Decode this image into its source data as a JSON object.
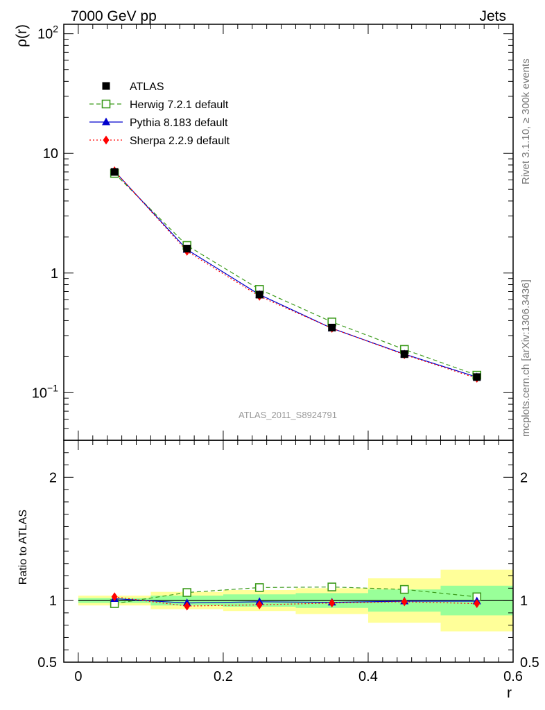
{
  "header": {
    "left_title": "7000 GeV pp",
    "right_title": "Jets",
    "side_label_1": "Rivet 3.1.10, ≥ 300k events",
    "side_label_2": "mcplots.cern.ch [arXiv:1306.3436]",
    "analysis_label": "ATLAS_2011_S8924791"
  },
  "chart_data": [
    {
      "type": "line",
      "title": "",
      "xlabel": "r",
      "ylabel": "ρ(r)",
      "yscale": "log",
      "xlim": [
        -0.02,
        0.6
      ],
      "ylim": [
        0.04,
        120
      ],
      "y_ticks": [
        {
          "value": 0.1,
          "base": "10",
          "exp": "−1"
        },
        {
          "value": 1,
          "label": "1"
        },
        {
          "value": 10,
          "label": "10"
        },
        {
          "value": 100,
          "base": "10",
          "exp": "2"
        }
      ],
      "x": [
        0.05,
        0.15,
        0.25,
        0.35,
        0.45,
        0.55
      ],
      "legend_position": "top-left",
      "series": [
        {
          "name": "ATLAS",
          "style": "data",
          "color": "#000000",
          "values": [
            7.0,
            1.6,
            0.66,
            0.35,
            0.21,
            0.135
          ]
        },
        {
          "name": "Herwig 7.2.1 default",
          "style": "dashed",
          "marker": "open-square",
          "color": "#3a9a1a",
          "values": [
            6.8,
            1.7,
            0.73,
            0.39,
            0.23,
            0.14
          ]
        },
        {
          "name": "Pythia 8.183 default",
          "style": "solid",
          "marker": "triangle",
          "color": "#0000cc",
          "values": [
            7.1,
            1.57,
            0.66,
            0.345,
            0.21,
            0.135
          ]
        },
        {
          "name": "Sherpa 2.2.9 default",
          "style": "dotted",
          "marker": "diamond",
          "color": "#ff0000",
          "values": [
            7.15,
            1.52,
            0.64,
            0.345,
            0.208,
            0.132
          ]
        }
      ]
    },
    {
      "type": "line",
      "title": "",
      "xlabel": "r",
      "ylabel": "Ratio to ATLAS",
      "xlim": [
        -0.02,
        0.6
      ],
      "ylim": [
        0.5,
        2.3
      ],
      "y_ticks": [
        0.5,
        1,
        2
      ],
      "x_ticks": [
        0,
        0.2,
        0.4,
        0.6
      ],
      "bins": [
        [
          0.0,
          0.1
        ],
        [
          0.1,
          0.2
        ],
        [
          0.2,
          0.3
        ],
        [
          0.3,
          0.4
        ],
        [
          0.4,
          0.5
        ],
        [
          0.5,
          0.6
        ]
      ],
      "band_stat": [
        [
          0.98,
          1.02
        ],
        [
          0.96,
          1.04
        ],
        [
          0.95,
          1.05
        ],
        [
          0.94,
          1.06
        ],
        [
          0.91,
          1.09
        ],
        [
          0.88,
          1.12
        ]
      ],
      "band_total": [
        [
          0.96,
          1.04
        ],
        [
          0.93,
          1.07
        ],
        [
          0.915,
          1.085
        ],
        [
          0.89,
          1.1
        ],
        [
          0.82,
          1.18
        ],
        [
          0.75,
          1.25
        ]
      ],
      "x": [
        0.05,
        0.15,
        0.25,
        0.35,
        0.45,
        0.55
      ],
      "series": [
        {
          "name": "Herwig 7.2.1 default",
          "values": [
            0.975,
            1.065,
            1.105,
            1.11,
            1.09,
            1.03
          ]
        },
        {
          "name": "Pythia 8.183 default",
          "values": [
            1.015,
            0.98,
            0.99,
            0.985,
            0.995,
            0.995
          ]
        },
        {
          "name": "Sherpa 2.2.9 default",
          "values": [
            1.03,
            0.955,
            0.965,
            0.98,
            0.99,
            0.975
          ]
        }
      ]
    }
  ]
}
